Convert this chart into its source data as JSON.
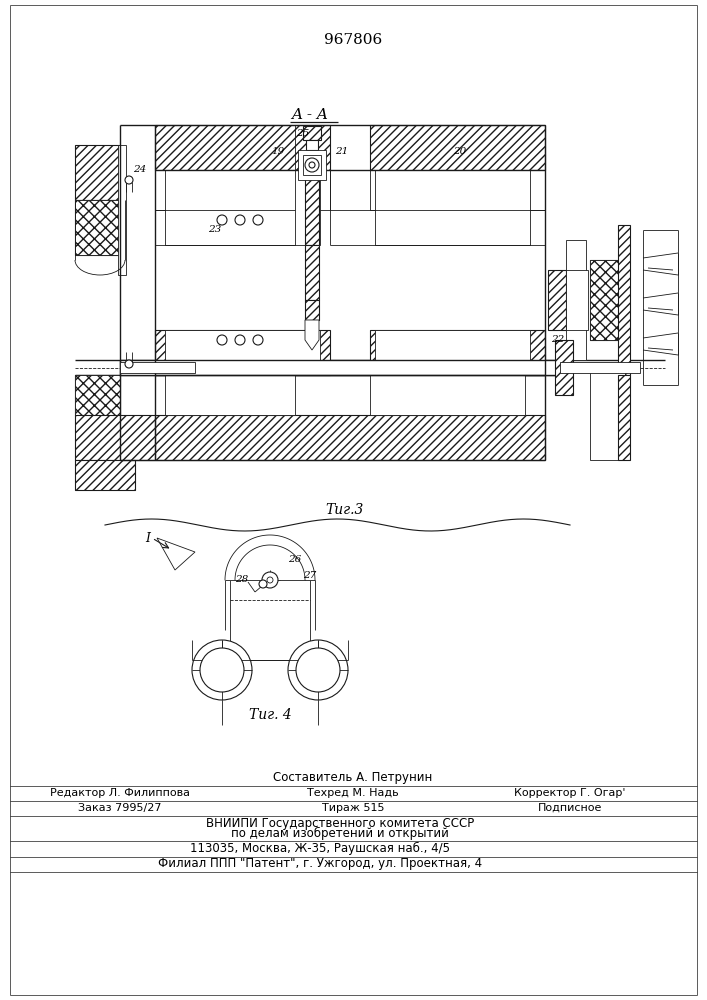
{
  "patent_number": "967806",
  "aa_label": "A - A",
  "fig3_label": "Τиг.3",
  "fig4_label": "Τиг. 4",
  "label_I": "I",
  "line_color": "#1a1a1a",
  "fig_width": 7.07,
  "fig_height": 10.0,
  "bottom": {
    "line1": "Составитель А. Петрунин",
    "line2a": "Редактор Л. Филиппова",
    "line2b": "Техред М. Надь",
    "line2c": "Корректор Г. Огар'",
    "line3a": "Заказ 7995/27",
    "line3b": "Тираж 515",
    "line3c": "Подписное",
    "line4": "ВНИИПИ Государственного комитета СССР",
    "line5": "по делам изобретений и открытий",
    "line6": "113035, Москва, Ж-35, Раушская наб., 4/5",
    "line7": "Филиал ППП \"Патент\", г. Ужгород, ул. Проектная, 4"
  }
}
